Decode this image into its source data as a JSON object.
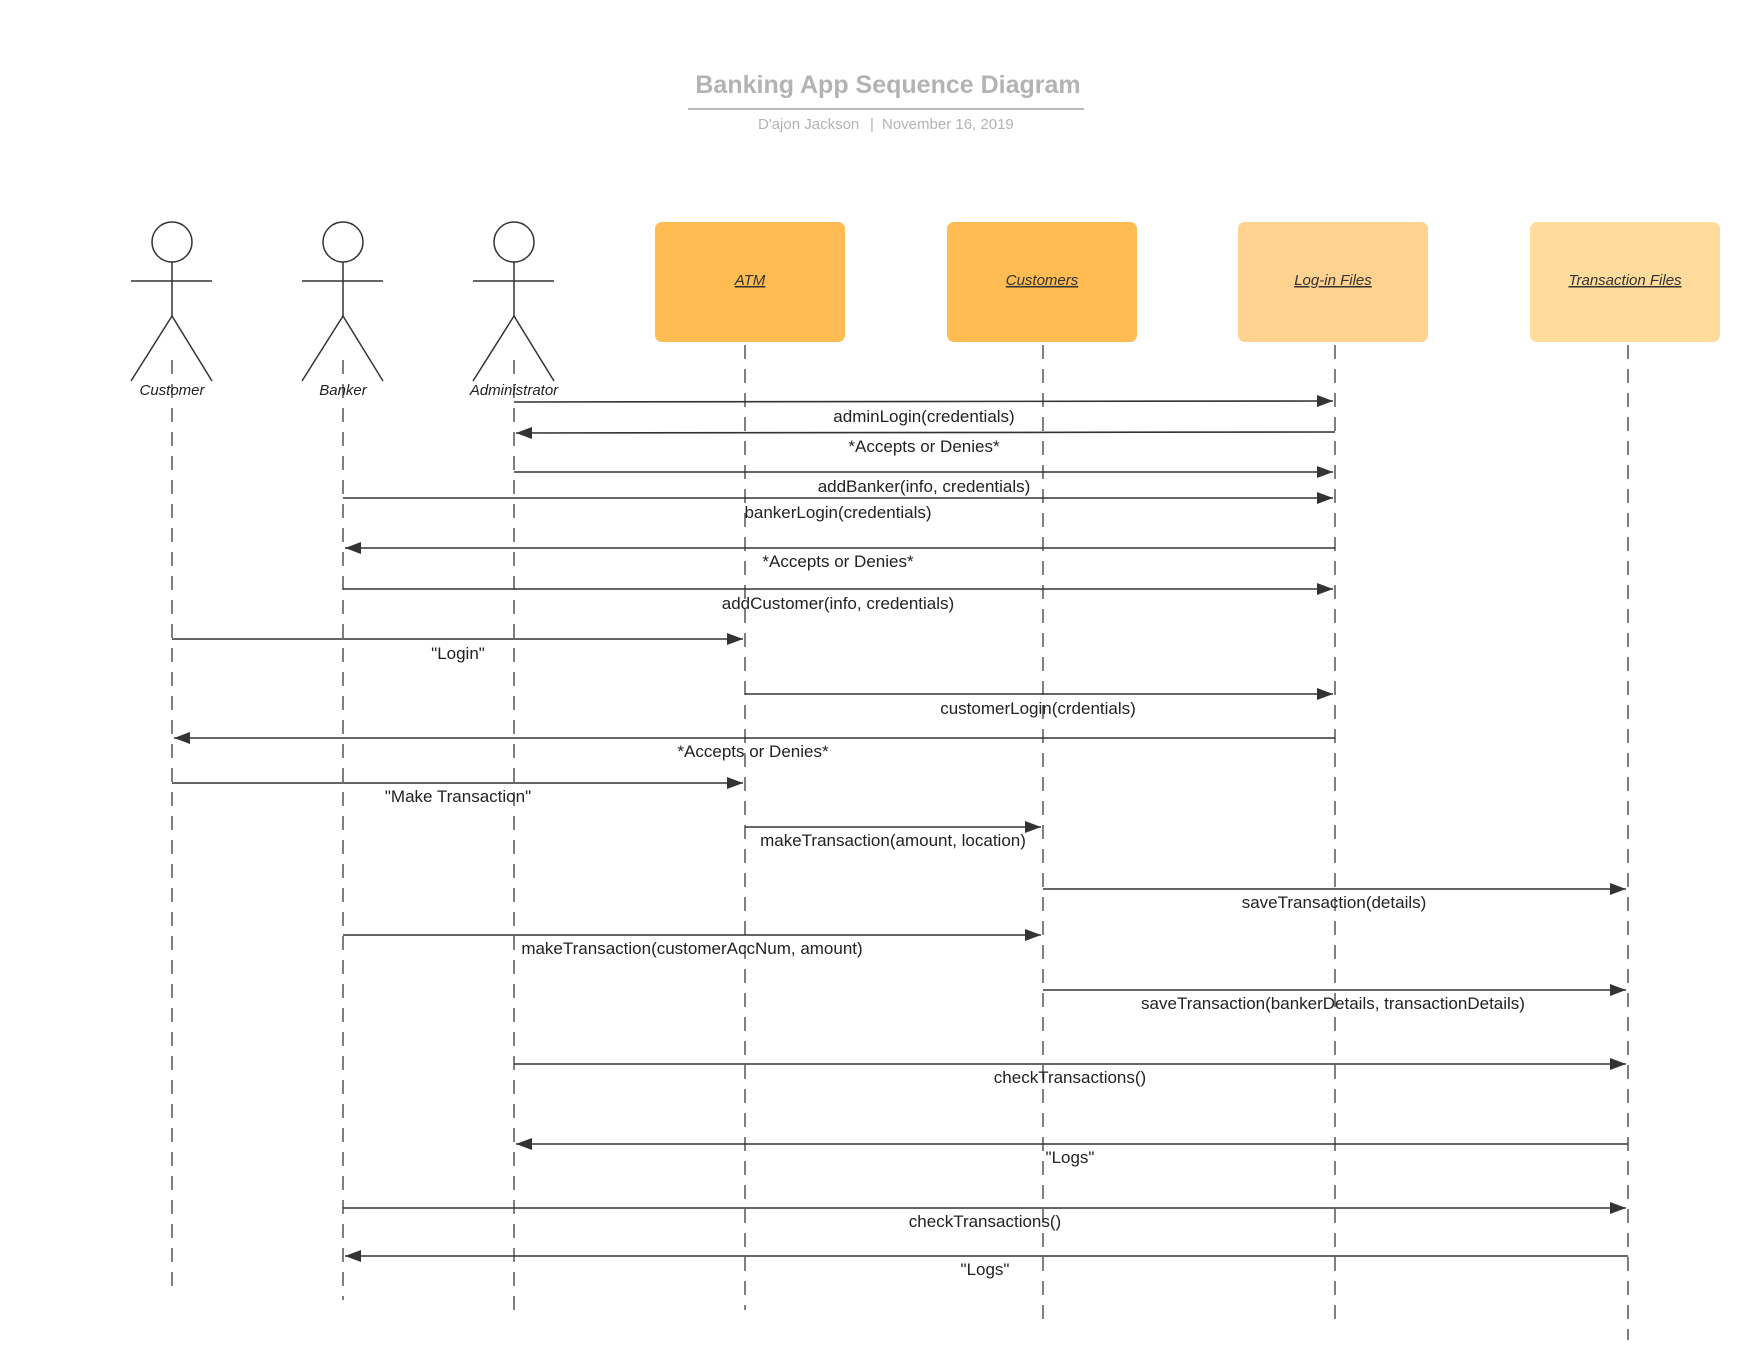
{
  "header": {
    "title": "Banking App Sequence Diagram",
    "author": "D'ajon Jackson",
    "separator": "|",
    "date": "November 16, 2019"
  },
  "colors": {
    "title": "#b3b3b3",
    "subtitle": "#b3b3b3",
    "line": "#333333",
    "lifeline": "#555555",
    "box_dark": "#ffbc52",
    "box_light": "#ffd28f",
    "box_lighter": "#ffdc9c"
  },
  "participants": [
    {
      "id": "customer",
      "kind": "actor",
      "label": "Customer"
    },
    {
      "id": "banker",
      "kind": "actor",
      "label": "Banker"
    },
    {
      "id": "administrator",
      "kind": "actor",
      "label": "Administrator"
    },
    {
      "id": "atm",
      "kind": "object",
      "label": "ATM",
      "color": "#ffbc52"
    },
    {
      "id": "customers",
      "kind": "object",
      "label": "Customers",
      "color": "#ffbc52"
    },
    {
      "id": "login_files",
      "kind": "object",
      "label": "Log-in Files",
      "color": "#ffd28f"
    },
    {
      "id": "transaction_files",
      "kind": "object",
      "label": "Transaction Files",
      "color": "#ffdc9c"
    }
  ],
  "messages": [
    {
      "from": "administrator",
      "to": "login_files",
      "label": "adminLogin(credentials)"
    },
    {
      "from": "login_files",
      "to": "administrator",
      "label": "*Accepts or Denies*"
    },
    {
      "from": "administrator",
      "to": "login_files",
      "label": "addBanker(info, credentials)"
    },
    {
      "from": "banker",
      "to": "login_files",
      "label": "bankerLogin(credentials)"
    },
    {
      "from": "login_files",
      "to": "banker",
      "label": "*Accepts or Denies*"
    },
    {
      "from": "banker",
      "to": "login_files",
      "label": "addCustomer(info, credentials)"
    },
    {
      "from": "customer",
      "to": "atm",
      "label": "\"Login\""
    },
    {
      "from": "atm",
      "to": "login_files",
      "label": "customerLogin(crdentials)"
    },
    {
      "from": "login_files",
      "to": "customer",
      "label": "*Accepts or Denies*"
    },
    {
      "from": "customer",
      "to": "atm",
      "label": "\"Make Transaction\""
    },
    {
      "from": "atm",
      "to": "customers",
      "label": "makeTransaction(amount, location)"
    },
    {
      "from": "customers",
      "to": "transaction_files",
      "label": "saveTransaction(details)"
    },
    {
      "from": "banker",
      "to": "customers",
      "label": "makeTransaction(customerAccNum, amount)"
    },
    {
      "from": "customers",
      "to": "transaction_files",
      "label": "saveTransaction(bankerDetails, transactionDetails)"
    },
    {
      "from": "administrator",
      "to": "transaction_files",
      "label": "checkTransactions()"
    },
    {
      "from": "transaction_files",
      "to": "administrator",
      "label": "\"Logs\""
    },
    {
      "from": "banker",
      "to": "transaction_files",
      "label": "checkTransactions()"
    },
    {
      "from": "transaction_files",
      "to": "banker",
      "label": "\"Logs\""
    }
  ]
}
